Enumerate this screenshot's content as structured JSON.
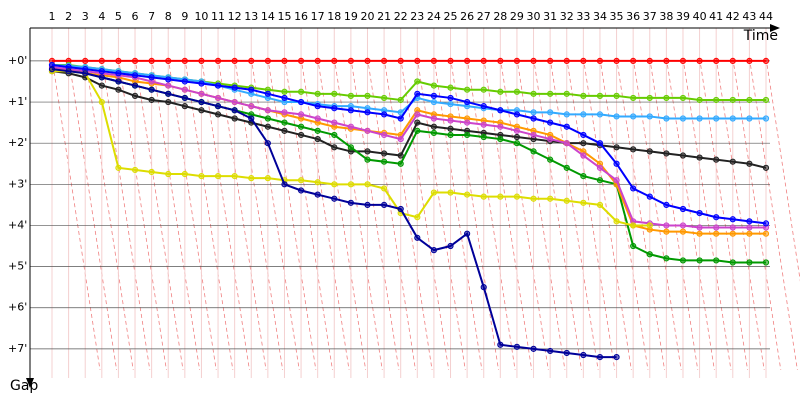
{
  "chart_data": {
    "type": "line",
    "xlabel": "Time",
    "ylabel": "Gap",
    "categories": [
      "1",
      "2",
      "3",
      "4",
      "5",
      "6",
      "7",
      "8",
      "9",
      "10",
      "11",
      "12",
      "13",
      "14",
      "15",
      "16",
      "17",
      "18",
      "19",
      "20",
      "21",
      "22",
      "23",
      "24",
      "25",
      "26",
      "27",
      "28",
      "29",
      "30",
      "31",
      "32",
      "33",
      "34",
      "35",
      "36",
      "37",
      "38",
      "39",
      "40",
      "41",
      "42",
      "43",
      "44"
    ],
    "ylim": [
      -0.8,
      8
    ],
    "inverted": true,
    "yticks": [
      {
        "value": 0,
        "label": "+0'"
      },
      {
        "value": 1,
        "label": "+1'"
      },
      {
        "value": 2,
        "label": "+2'"
      },
      {
        "value": 3,
        "label": "+3'"
      },
      {
        "value": 4,
        "label": "+4'"
      },
      {
        "value": 5,
        "label": "+5'"
      },
      {
        "value": 6,
        "label": "+6'"
      },
      {
        "value": 7,
        "label": "+7'"
      }
    ],
    "grid": true,
    "series": [
      {
        "color": "#ff0000",
        "values": [
          0,
          0,
          0,
          0,
          0,
          0,
          0,
          0,
          0,
          0,
          0,
          0,
          0,
          0,
          0,
          0,
          0,
          0,
          0,
          0,
          0,
          0,
          0,
          0,
          0,
          0,
          0,
          0,
          0,
          0,
          0,
          0,
          0,
          0,
          0,
          0,
          0,
          0,
          0,
          0,
          0,
          0,
          0,
          0
        ]
      },
      {
        "color": "#66cc00",
        "values": [
          0.1,
          0.1,
          0.15,
          0.2,
          0.25,
          0.3,
          0.35,
          0.4,
          0.45,
          0.5,
          0.55,
          0.6,
          0.65,
          0.7,
          0.75,
          0.75,
          0.8,
          0.8,
          0.85,
          0.85,
          0.9,
          0.95,
          0.5,
          0.6,
          0.65,
          0.7,
          0.7,
          0.75,
          0.75,
          0.8,
          0.8,
          0.8,
          0.85,
          0.85,
          0.85,
          0.9,
          0.9,
          0.9,
          0.9,
          0.95,
          0.95,
          0.95,
          0.95,
          0.95
        ]
      },
      {
        "color": "#33aaff",
        "values": [
          0.1,
          0.12,
          0.15,
          0.2,
          0.25,
          0.3,
          0.35,
          0.4,
          0.45,
          0.5,
          0.6,
          0.7,
          0.8,
          0.9,
          1.0,
          1.0,
          1.05,
          1.1,
          1.1,
          1.15,
          1.2,
          1.25,
          0.9,
          1.0,
          1.05,
          1.1,
          1.15,
          1.2,
          1.2,
          1.25,
          1.25,
          1.3,
          1.3,
          1.3,
          1.35,
          1.35,
          1.35,
          1.4,
          1.4,
          1.4,
          1.4,
          1.4,
          1.4,
          1.4
        ]
      },
      {
        "color": "#222222",
        "values": [
          0.25,
          0.3,
          0.4,
          0.6,
          0.7,
          0.85,
          0.95,
          1.0,
          1.1,
          1.2,
          1.3,
          1.4,
          1.5,
          1.6,
          1.7,
          1.8,
          1.9,
          2.1,
          2.2,
          2.2,
          2.25,
          2.3,
          1.5,
          1.6,
          1.65,
          1.7,
          1.75,
          1.8,
          1.85,
          1.9,
          1.95,
          2.0,
          2.0,
          2.05,
          2.1,
          2.15,
          2.2,
          2.25,
          2.3,
          2.35,
          2.4,
          2.45,
          2.5,
          2.6
        ]
      },
      {
        "color": "#009900",
        "values": [
          0.2,
          0.25,
          0.3,
          0.4,
          0.5,
          0.6,
          0.7,
          0.8,
          0.9,
          1.0,
          1.1,
          1.2,
          1.3,
          1.4,
          1.5,
          1.6,
          1.7,
          1.8,
          2.1,
          2.4,
          2.45,
          2.5,
          1.7,
          1.75,
          1.8,
          1.8,
          1.85,
          1.9,
          2.0,
          2.2,
          2.4,
          2.6,
          2.8,
          2.9,
          3.0,
          4.5,
          4.7,
          4.8,
          4.85,
          4.85,
          4.85,
          4.9,
          4.9,
          4.9
        ]
      },
      {
        "color": "#ff9900",
        "values": [
          0.2,
          0.2,
          0.3,
          0.35,
          0.4,
          0.5,
          0.55,
          0.6,
          0.7,
          0.8,
          0.9,
          1.0,
          1.1,
          1.2,
          1.3,
          1.4,
          1.5,
          1.6,
          1.65,
          1.7,
          1.75,
          1.8,
          1.2,
          1.3,
          1.35,
          1.4,
          1.45,
          1.5,
          1.6,
          1.7,
          1.8,
          2.0,
          2.2,
          2.5,
          3.0,
          4.0,
          4.1,
          4.15,
          4.15,
          4.2,
          4.2,
          4.2,
          4.2,
          4.2
        ]
      },
      {
        "color": "#cc44cc",
        "values": [
          0.15,
          0.2,
          0.25,
          0.3,
          0.35,
          0.4,
          0.5,
          0.6,
          0.7,
          0.8,
          0.9,
          1.0,
          1.1,
          1.2,
          1.25,
          1.3,
          1.4,
          1.5,
          1.6,
          1.7,
          1.8,
          1.9,
          1.3,
          1.4,
          1.45,
          1.5,
          1.55,
          1.6,
          1.7,
          1.8,
          1.9,
          2.0,
          2.3,
          2.6,
          2.9,
          3.9,
          3.95,
          4.0,
          4.0,
          4.05,
          4.05,
          4.05,
          4.05,
          4.05
        ]
      },
      {
        "color": "#0000ff",
        "values": [
          0.1,
          0.15,
          0.2,
          0.25,
          0.3,
          0.35,
          0.4,
          0.45,
          0.5,
          0.55,
          0.6,
          0.65,
          0.7,
          0.8,
          0.9,
          1.0,
          1.1,
          1.15,
          1.2,
          1.25,
          1.3,
          1.4,
          0.8,
          0.85,
          0.9,
          1.0,
          1.1,
          1.2,
          1.3,
          1.4,
          1.5,
          1.6,
          1.8,
          2.0,
          2.5,
          3.1,
          3.3,
          3.5,
          3.6,
          3.7,
          3.8,
          3.85,
          3.9,
          3.95
        ]
      },
      {
        "color": "#dddd00",
        "values": [
          0.25,
          0.25,
          0.3,
          1.0,
          2.6,
          2.65,
          2.7,
          2.75,
          2.75,
          2.8,
          2.8,
          2.8,
          2.85,
          2.85,
          2.9,
          2.9,
          2.95,
          3.0,
          3.0,
          3.0,
          3.1,
          3.7,
          3.8,
          3.2,
          3.2,
          3.25,
          3.3,
          3.3,
          3.3,
          3.35,
          3.35,
          3.4,
          3.45,
          3.5,
          3.9,
          4.0,
          4.0,
          null,
          null,
          null,
          null,
          null,
          null,
          null
        ]
      },
      {
        "color": "#000099",
        "values": [
          0.2,
          0.25,
          0.3,
          0.4,
          0.5,
          0.6,
          0.7,
          0.8,
          0.9,
          1.0,
          1.1,
          1.2,
          1.4,
          2.0,
          3.0,
          3.15,
          3.25,
          3.35,
          3.45,
          3.5,
          3.5,
          3.6,
          4.3,
          4.6,
          4.5,
          4.2,
          5.5,
          6.9,
          6.95,
          7.0,
          7.05,
          7.1,
          7.15,
          7.2,
          7.2,
          null,
          null,
          null,
          null,
          null,
          null,
          null,
          null,
          null
        ]
      }
    ]
  }
}
